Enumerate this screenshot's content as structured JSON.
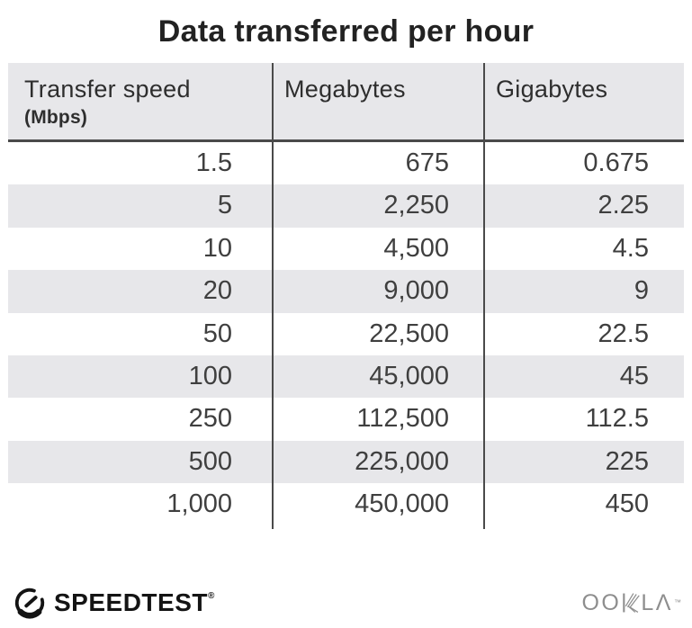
{
  "title": "Data transferred per hour",
  "table": {
    "headers": [
      {
        "label": "Transfer speed",
        "sublabel": "(Mbps)"
      },
      {
        "label": "Megabytes",
        "sublabel": ""
      },
      {
        "label": "Gigabytes",
        "sublabel": ""
      }
    ],
    "rows": [
      [
        "1.5",
        "675",
        "0.675"
      ],
      [
        "5",
        "2,250",
        "2.25"
      ],
      [
        "10",
        "4,500",
        "4.5"
      ],
      [
        "20",
        "9,000",
        "9"
      ],
      [
        "50",
        "22,500",
        "22.5"
      ],
      [
        "100",
        "45,000",
        "45"
      ],
      [
        "250",
        "112,500",
        "112.5"
      ],
      [
        "500",
        "225,000",
        "225"
      ],
      [
        "1,000",
        "450,000",
        "450"
      ]
    ]
  },
  "footer": {
    "speedtest": {
      "label": "SPEEDTEST",
      "trademark": "®"
    },
    "ookla": {
      "name": "OOKLA",
      "left": "OO",
      "right": "LΛ",
      "trademark": "™"
    }
  },
  "colors": {
    "stripe": "#e7e7ea",
    "header_bg": "#e7e7ea",
    "line": "#4a4a4a",
    "text": "#3f3f3f",
    "title": "#222222",
    "ookla_gray": "#8e8e8e",
    "speedtest_black": "#141414"
  },
  "chart_data": {
    "type": "table",
    "title": "Data transferred per hour",
    "columns": [
      "Transfer speed (Mbps)",
      "Megabytes",
      "Gigabytes"
    ],
    "rows": [
      [
        1.5,
        675,
        0.675
      ],
      [
        5,
        2250,
        2.25
      ],
      [
        10,
        4500,
        4.5
      ],
      [
        20,
        9000,
        9
      ],
      [
        50,
        22500,
        22.5
      ],
      [
        100,
        45000,
        45
      ],
      [
        250,
        112500,
        112.5
      ],
      [
        500,
        225000,
        225
      ],
      [
        1000,
        450000,
        450
      ]
    ]
  }
}
